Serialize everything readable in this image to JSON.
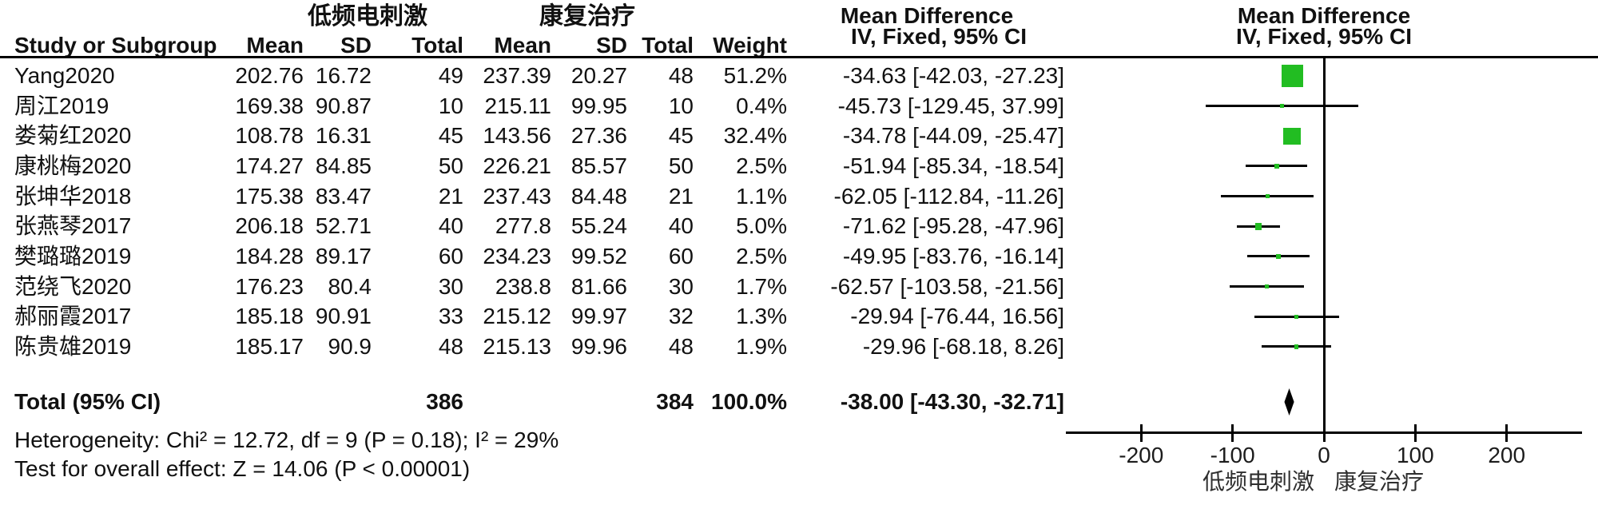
{
  "header": {
    "group1": "低频电刺激",
    "group2": "康复治疗",
    "col_study": "Study or Subgroup",
    "col_mean": "Mean",
    "col_sd": "SD",
    "col_total": "Total",
    "col_weight": "Weight",
    "md_title": "Mean Difference",
    "md_sub": "IV, Fixed, 95% CI"
  },
  "chart_data": {
    "type": "forest",
    "effect_measure": "Mean Difference",
    "method": "IV, Fixed, 95% CI",
    "marker_color": "#22bd22",
    "studies": [
      {
        "name": "Yang2020",
        "mean1": "202.76",
        "sd1": "16.72",
        "n1": "49",
        "mean2": "237.39",
        "sd2": "20.27",
        "n2": "48",
        "weight": "51.2%",
        "ci_text": "-34.63 [-42.03, -27.23]",
        "md": -34.63,
        "lo": -42.03,
        "hi": -27.23
      },
      {
        "name": "周江2019",
        "mean1": "169.38",
        "sd1": "90.87",
        "n1": "10",
        "mean2": "215.11",
        "sd2": "99.95",
        "n2": "10",
        "weight": "0.4%",
        "ci_text": "-45.73 [-129.45, 37.99]",
        "md": -45.73,
        "lo": -129.45,
        "hi": 37.99
      },
      {
        "name": "娄菊红2020",
        "mean1": "108.78",
        "sd1": "16.31",
        "n1": "45",
        "mean2": "143.56",
        "sd2": "27.36",
        "n2": "45",
        "weight": "32.4%",
        "ci_text": "-34.78 [-44.09, -25.47]",
        "md": -34.78,
        "lo": -44.09,
        "hi": -25.47
      },
      {
        "name": "康桃梅2020",
        "mean1": "174.27",
        "sd1": "84.85",
        "n1": "50",
        "mean2": "226.21",
        "sd2": "85.57",
        "n2": "50",
        "weight": "2.5%",
        "ci_text": "-51.94 [-85.34, -18.54]",
        "md": -51.94,
        "lo": -85.34,
        "hi": -18.54
      },
      {
        "name": "张坤华2018",
        "mean1": "175.38",
        "sd1": "83.47",
        "n1": "21",
        "mean2": "237.43",
        "sd2": "84.48",
        "n2": "21",
        "weight": "1.1%",
        "ci_text": "-62.05 [-112.84, -11.26]",
        "md": -62.05,
        "lo": -112.84,
        "hi": -11.26
      },
      {
        "name": "张燕琴2017",
        "mean1": "206.18",
        "sd1": "52.71",
        "n1": "40",
        "mean2": "277.8",
        "sd2": "55.24",
        "n2": "40",
        "weight": "5.0%",
        "ci_text": "-71.62 [-95.28, -47.96]",
        "md": -71.62,
        "lo": -95.28,
        "hi": -47.96
      },
      {
        "name": "樊璐璐2019",
        "mean1": "184.28",
        "sd1": "89.17",
        "n1": "60",
        "mean2": "234.23",
        "sd2": "99.52",
        "n2": "60",
        "weight": "2.5%",
        "ci_text": "-49.95 [-83.76, -16.14]",
        "md": -49.95,
        "lo": -83.76,
        "hi": -16.14
      },
      {
        "name": "范绕飞2020",
        "mean1": "176.23",
        "sd1": "80.4",
        "n1": "30",
        "mean2": "238.8",
        "sd2": "81.66",
        "n2": "30",
        "weight": "1.7%",
        "ci_text": "-62.57 [-103.58, -21.56]",
        "md": -62.57,
        "lo": -103.58,
        "hi": -21.56
      },
      {
        "name": "郝丽霞2017",
        "mean1": "185.18",
        "sd1": "90.91",
        "n1": "33",
        "mean2": "215.12",
        "sd2": "99.97",
        "n2": "32",
        "weight": "1.3%",
        "ci_text": "-29.94 [-76.44, 16.56]",
        "md": -29.94,
        "lo": -76.44,
        "hi": 16.56
      },
      {
        "name": "陈贵雄2019",
        "mean1": "185.17",
        "sd1": "90.9",
        "n1": "48",
        "mean2": "215.13",
        "sd2": "99.96",
        "n2": "48",
        "weight": "1.9%",
        "ci_text": "-29.96 [-68.18, 8.26]",
        "md": -29.96,
        "lo": -68.18,
        "hi": 8.26
      }
    ],
    "total": {
      "label": "Total (95% CI)",
      "n1": "386",
      "n2": "384",
      "weight": "100.0%",
      "ci_text": "-38.00 [-43.30, -32.71]",
      "md": -38.0,
      "lo": -43.3,
      "hi": -32.71
    },
    "heterogeneity": "Heterogeneity: Chi² = 12.72, df = 9 (P = 0.18); I² = 29%",
    "overall_effect": "Test for overall effect: Z = 14.06 (P < 0.00001)",
    "axis": {
      "ticks": [
        -200,
        -100,
        0,
        100,
        200
      ],
      "tick_labels": [
        "-200",
        "-100",
        "0",
        "100",
        "200"
      ],
      "favours_left": "低频电刺激",
      "favours_right": "康复治疗"
    }
  }
}
